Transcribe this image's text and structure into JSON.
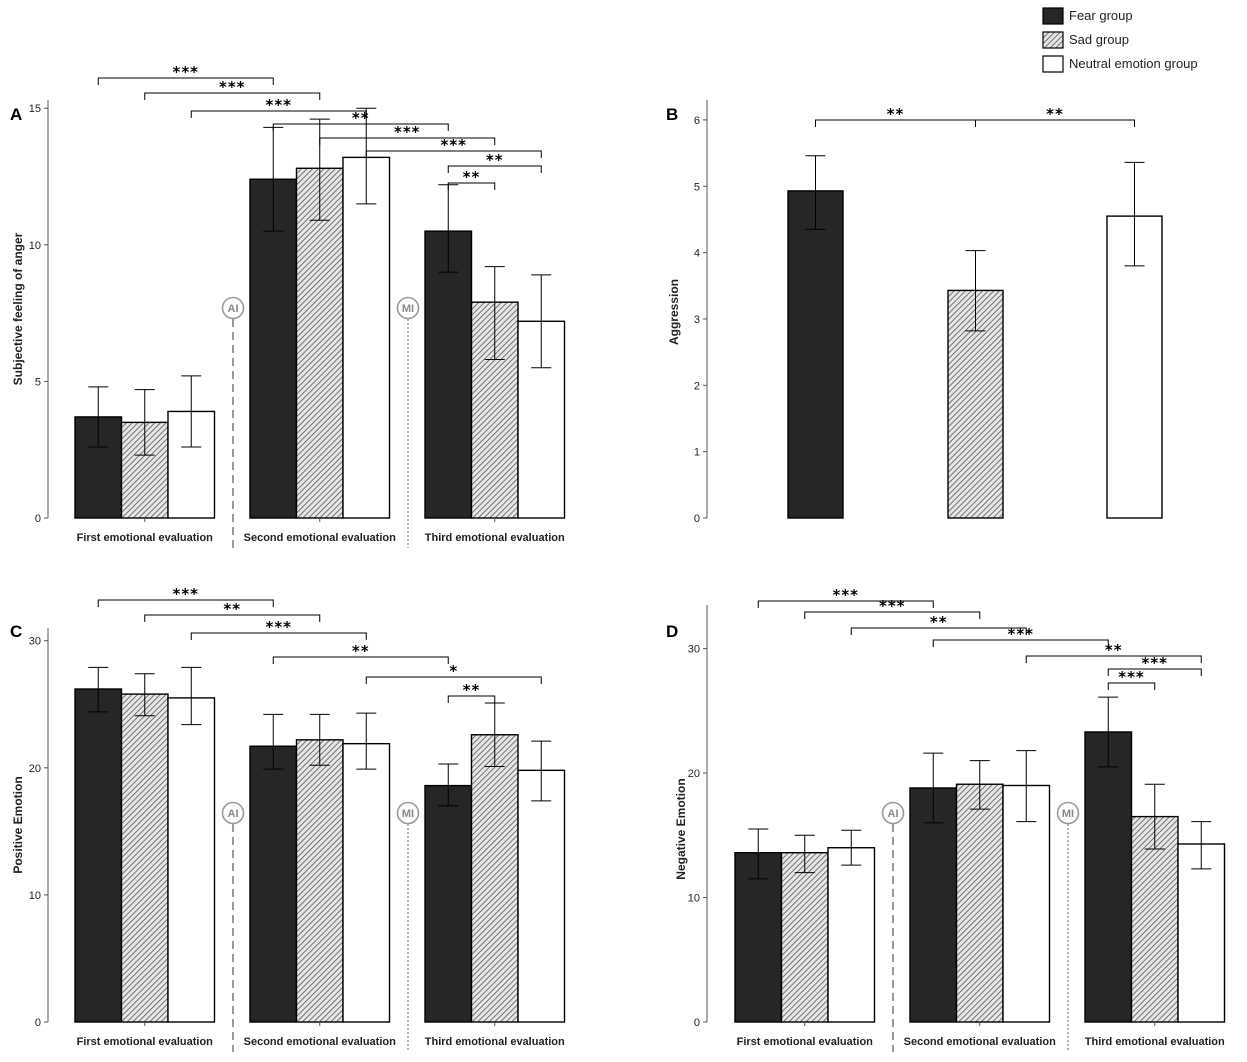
{
  "legend": {
    "items": [
      {
        "label": "Fear group",
        "pattern": "fear"
      },
      {
        "label": "Sad group",
        "pattern": "sad"
      },
      {
        "label": "Neutral emotion group",
        "pattern": "neutral"
      }
    ]
  },
  "colors": {
    "fear": "#262626",
    "sad_base": "#e6e6e6",
    "sad_hatch": "#555555",
    "neutral": "#ffffff",
    "marker": "#9a9a9a"
  },
  "markers": {
    "ai": "AI",
    "mi": "MI"
  },
  "chart_data": [
    {
      "panel": "A",
      "type": "bar",
      "ylabel": "Subjective feeling of anger",
      "ylim": [
        0,
        15.3
      ],
      "yticks": [
        0,
        5,
        10,
        15
      ],
      "categories": [
        "First emotional evaluation",
        "Second emotional evaluation",
        "Third emotional evaluation"
      ],
      "series": [
        {
          "name": "Fear group",
          "values": [
            3.7,
            12.4,
            10.5
          ],
          "err_low": [
            2.6,
            10.5,
            9.0
          ],
          "err_high": [
            4.8,
            14.3,
            12.2
          ]
        },
        {
          "name": "Sad group",
          "values": [
            3.5,
            12.8,
            7.9
          ],
          "err_low": [
            2.3,
            10.9,
            5.8
          ],
          "err_high": [
            4.7,
            14.6,
            9.2
          ]
        },
        {
          "name": "Neutral emotion group",
          "values": [
            3.9,
            13.2,
            7.2
          ],
          "err_low": [
            2.6,
            11.5,
            5.5
          ],
          "err_high": [
            5.2,
            15.0,
            8.9
          ]
        }
      ],
      "markers_after_group": [
        0,
        1
      ],
      "significance": [
        {
          "from": [
            0,
            0
          ],
          "to": [
            1,
            0
          ],
          "label": "***"
        },
        {
          "from": [
            0,
            1
          ],
          "to": [
            1,
            1
          ],
          "label": "***"
        },
        {
          "from": [
            0,
            2
          ],
          "to": [
            1,
            2
          ],
          "label": "***"
        },
        {
          "from": [
            1,
            0
          ],
          "to": [
            2,
            0
          ],
          "label": "**"
        },
        {
          "from": [
            1,
            1
          ],
          "to": [
            2,
            1
          ],
          "label": "***"
        },
        {
          "from": [
            1,
            2
          ],
          "to": [
            2,
            2
          ],
          "label": "***"
        },
        {
          "from": [
            2,
            0
          ],
          "to": [
            2,
            2
          ],
          "label": "**"
        },
        {
          "from": [
            2,
            0
          ],
          "to": [
            2,
            1
          ],
          "label": "**"
        }
      ]
    },
    {
      "panel": "B",
      "type": "bar",
      "ylabel": "Aggression",
      "ylim": [
        0,
        6.3
      ],
      "yticks": [
        0,
        1,
        2,
        3,
        4,
        5,
        6
      ],
      "categories": [
        ""
      ],
      "series": [
        {
          "name": "Fear group",
          "values": [
            4.93
          ],
          "err_low": [
            4.35
          ],
          "err_high": [
            5.46
          ]
        },
        {
          "name": "Sad group",
          "values": [
            3.43
          ],
          "err_low": [
            2.82
          ],
          "err_high": [
            4.03
          ]
        },
        {
          "name": "Neutral emotion group",
          "values": [
            4.55
          ],
          "err_low": [
            3.8
          ],
          "err_high": [
            5.36
          ]
        }
      ],
      "markers_after_group": [],
      "significance": [
        {
          "from": [
            0,
            0
          ],
          "to": [
            0,
            1
          ],
          "label": "**"
        },
        {
          "from": [
            0,
            1
          ],
          "to": [
            0,
            2
          ],
          "label": "**"
        }
      ]
    },
    {
      "panel": "C",
      "type": "bar",
      "ylabel": "Positive Emotion",
      "ylim": [
        0,
        31
      ],
      "yticks": [
        0,
        10,
        20,
        30
      ],
      "categories": [
        "First emotional evaluation",
        "Second emotional evaluation",
        "Third emotional evaluation"
      ],
      "series": [
        {
          "name": "Fear group",
          "values": [
            26.2,
            21.7,
            18.6
          ],
          "err_low": [
            24.4,
            19.9,
            17.0
          ],
          "err_high": [
            27.9,
            24.2,
            20.3
          ]
        },
        {
          "name": "Sad group",
          "values": [
            25.8,
            22.2,
            22.6
          ],
          "err_low": [
            24.1,
            20.2,
            20.1
          ],
          "err_high": [
            27.4,
            24.2,
            25.1
          ]
        },
        {
          "name": "Neutral emotion group",
          "values": [
            25.5,
            21.9,
            19.8
          ],
          "err_low": [
            23.4,
            19.9,
            17.4
          ],
          "err_high": [
            27.9,
            24.3,
            22.1
          ]
        }
      ],
      "markers_after_group": [
        0,
        1
      ],
      "significance": [
        {
          "from": [
            0,
            0
          ],
          "to": [
            1,
            0
          ],
          "label": "***"
        },
        {
          "from": [
            0,
            1
          ],
          "to": [
            1,
            1
          ],
          "label": "**"
        },
        {
          "from": [
            0,
            2
          ],
          "to": [
            1,
            2
          ],
          "label": "***"
        },
        {
          "from": [
            1,
            0
          ],
          "to": [
            2,
            0
          ],
          "label": "**"
        },
        {
          "from": [
            1,
            2
          ],
          "to": [
            2,
            2
          ],
          "label": "*"
        },
        {
          "from": [
            2,
            0
          ],
          "to": [
            2,
            1
          ],
          "label": "**"
        }
      ]
    },
    {
      "panel": "D",
      "type": "bar",
      "ylabel": "Negative Emotion",
      "ylim": [
        0,
        33.5
      ],
      "yticks": [
        0,
        10,
        20,
        30
      ],
      "categories": [
        "First emotional evaluation",
        "Second emotional evaluation",
        "Third emotional evaluation"
      ],
      "series": [
        {
          "name": "Fear group",
          "values": [
            13.6,
            18.8,
            23.3
          ],
          "err_low": [
            11.5,
            16.0,
            20.5
          ],
          "err_high": [
            15.5,
            21.6,
            26.1
          ]
        },
        {
          "name": "Sad group",
          "values": [
            13.6,
            19.1,
            16.5
          ],
          "err_low": [
            12.0,
            17.1,
            13.9
          ],
          "err_high": [
            15.0,
            21.0,
            19.1
          ]
        },
        {
          "name": "Neutral emotion group",
          "values": [
            14.0,
            19.0,
            14.3
          ],
          "err_low": [
            12.6,
            16.1,
            12.3
          ],
          "err_high": [
            15.4,
            21.8,
            16.1
          ]
        }
      ],
      "markers_after_group": [
        0,
        1
      ],
      "significance": [
        {
          "from": [
            0,
            0
          ],
          "to": [
            1,
            0
          ],
          "label": "***"
        },
        {
          "from": [
            0,
            1
          ],
          "to": [
            1,
            1
          ],
          "label": "***"
        },
        {
          "from": [
            0,
            2
          ],
          "to": [
            1,
            2
          ],
          "label": "**"
        },
        {
          "from": [
            1,
            0
          ],
          "to": [
            2,
            0
          ],
          "label": "***"
        },
        {
          "from": [
            1,
            2
          ],
          "to": [
            2,
            2
          ],
          "label": "**"
        },
        {
          "from": [
            2,
            0
          ],
          "to": [
            2,
            2
          ],
          "label": "***"
        },
        {
          "from": [
            2,
            0
          ],
          "to": [
            2,
            1
          ],
          "label": "***"
        }
      ]
    }
  ]
}
